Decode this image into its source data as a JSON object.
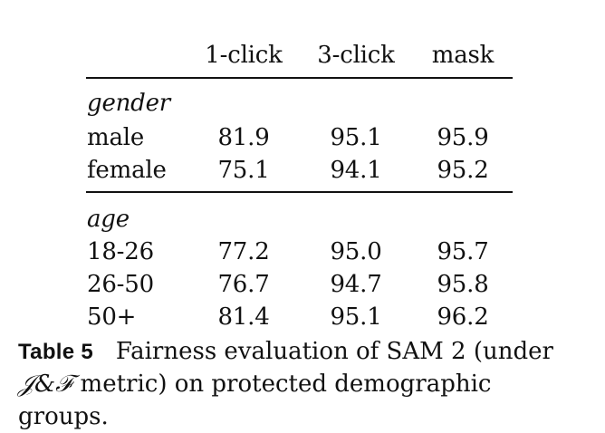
{
  "table": {
    "headers": [
      "1-click",
      "3-click",
      "mask"
    ],
    "groups": [
      {
        "section": "gender",
        "rows": [
          {
            "label": "male",
            "values": [
              "81.9",
              "95.1",
              "95.9"
            ]
          },
          {
            "label": "female",
            "values": [
              "75.1",
              "94.1",
              "95.2"
            ]
          }
        ]
      },
      {
        "section": "age",
        "rows": [
          {
            "label": "18-26",
            "values": [
              "77.2",
              "95.0",
              "95.7"
            ]
          },
          {
            "label": "26-50",
            "values": [
              "76.7",
              "94.7",
              "95.8"
            ]
          },
          {
            "label": "50+",
            "values": [
              "81.4",
              "95.1",
              "96.2"
            ]
          }
        ]
      }
    ]
  },
  "caption": {
    "label": "Table 5",
    "line1_text": "Fairness evaluation of SAM 2 (under",
    "math": "𝒥&ℱ",
    "line2_text": " metric) on protected demographic groups."
  }
}
